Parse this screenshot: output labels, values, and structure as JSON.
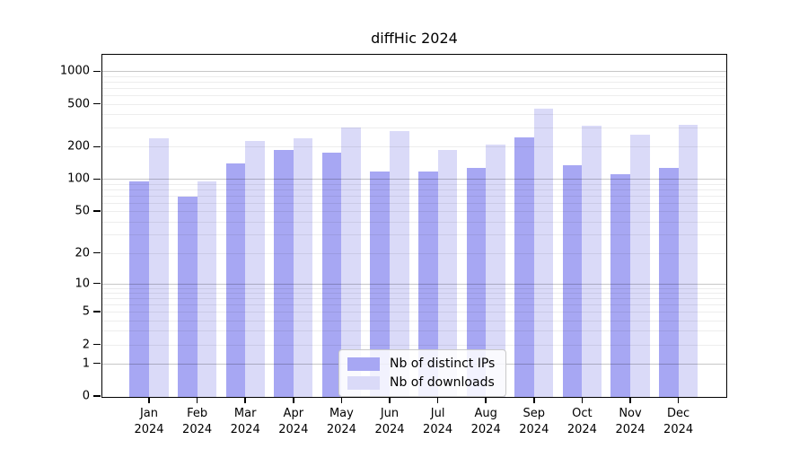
{
  "chart_data": {
    "type": "bar",
    "title": "diffHic 2024",
    "x_tick_months": [
      "Jan",
      "Feb",
      "Mar",
      "Apr",
      "May",
      "Jun",
      "Jul",
      "Aug",
      "Sep",
      "Oct",
      "Nov",
      "Dec"
    ],
    "x_tick_year": "2024",
    "y_ticks": [
      0,
      1,
      2,
      5,
      10,
      20,
      50,
      100,
      200,
      500,
      1000
    ],
    "y_scale": "log10(value+1)",
    "y_top_value": 1419,
    "ylim": [
      0,
      1419
    ],
    "grid": true,
    "legend_position": "inside-bottom-center",
    "series": [
      {
        "name": "Nb of distinct IPs",
        "color": "#a7a7f3",
        "values": [
          97,
          70,
          144,
          191,
          180,
          120,
          119,
          130,
          250,
          137,
          113,
          129
        ]
      },
      {
        "name": "Nb of downloads",
        "color": "#dadaf8",
        "values": [
          243,
          97,
          231,
          246,
          310,
          286,
          190,
          215,
          462,
          322,
          265,
          325
        ]
      }
    ]
  },
  "colors": {
    "background": "#ffffff",
    "axis": "#000000",
    "grid_minor": "rgba(0,0,0,0.07)",
    "grid_major": "rgba(0,0,0,0.22)",
    "series_ips": "#a7a7f3",
    "series_downloads": "#dadaf8"
  }
}
